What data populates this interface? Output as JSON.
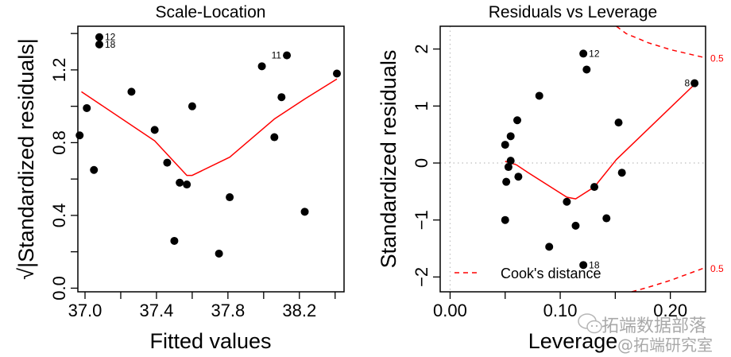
{
  "chart_data": [
    {
      "type": "scatter",
      "title": "Scale-Location",
      "xlabel": "Fitted values",
      "ylabel": "√|Standardized residuals|",
      "xlim": [
        36.96,
        38.45
      ],
      "ylim": [
        -0.02,
        1.44
      ],
      "xticks": [
        37.0,
        37.2,
        37.4,
        37.6,
        37.8,
        38.0,
        38.2,
        38.4
      ],
      "xticklabels": [
        "37.0",
        "",
        "37.4",
        "",
        "37.8",
        "",
        "38.2",
        ""
      ],
      "yticks": [
        0.0,
        0.2,
        0.4,
        0.6,
        0.8,
        1.0,
        1.2,
        1.4
      ],
      "yticklabels": [
        "0.0",
        "",
        "0.4",
        "",
        "0.8",
        "",
        "1.2",
        ""
      ],
      "grid": false,
      "points": [
        {
          "x": 37.08,
          "y": 1.38,
          "label": "12"
        },
        {
          "x": 37.08,
          "y": 1.34,
          "label": "18"
        },
        {
          "x": 36.97,
          "y": 0.84,
          "label": ""
        },
        {
          "x": 37.01,
          "y": 0.99,
          "label": ""
        },
        {
          "x": 37.05,
          "y": 0.65,
          "label": ""
        },
        {
          "x": 37.26,
          "y": 1.08,
          "label": ""
        },
        {
          "x": 37.39,
          "y": 0.87,
          "label": ""
        },
        {
          "x": 37.46,
          "y": 0.69,
          "label": ""
        },
        {
          "x": 37.5,
          "y": 0.26,
          "label": ""
        },
        {
          "x": 37.53,
          "y": 0.58,
          "label": ""
        },
        {
          "x": 37.57,
          "y": 0.57,
          "label": ""
        },
        {
          "x": 37.6,
          "y": 1.0,
          "label": ""
        },
        {
          "x": 37.75,
          "y": 0.19,
          "label": ""
        },
        {
          "x": 37.81,
          "y": 0.5,
          "label": ""
        },
        {
          "x": 37.99,
          "y": 1.22,
          "label": ""
        },
        {
          "x": 38.06,
          "y": 0.83,
          "label": ""
        },
        {
          "x": 38.1,
          "y": 1.05,
          "label": ""
        },
        {
          "x": 38.13,
          "y": 1.28,
          "label": "11"
        },
        {
          "x": 38.23,
          "y": 0.42,
          "label": ""
        },
        {
          "x": 38.41,
          "y": 1.18,
          "label": ""
        }
      ],
      "smooth_line": {
        "color": "#ff0000",
        "x": [
          36.98,
          37.39,
          37.57,
          37.6,
          37.81,
          38.06,
          38.23,
          38.41
        ],
        "y": [
          1.08,
          0.81,
          0.62,
          0.62,
          0.72,
          0.93,
          1.04,
          1.15
        ]
      }
    },
    {
      "type": "scatter",
      "title": "Residuals vs Leverage",
      "xlabel": "Leverage",
      "ylabel": "Standardized residuals",
      "xlim": [
        -0.009,
        0.232
      ],
      "ylim": [
        -2.26,
        2.4
      ],
      "xticks": [
        0.0,
        0.05,
        0.1,
        0.15,
        0.2
      ],
      "xticklabels": [
        "0.00",
        "",
        "0.10",
        "",
        "0.20"
      ],
      "yticks": [
        -2,
        -1,
        0,
        1,
        2
      ],
      "yticklabels": [
        "−2",
        "−1",
        "0",
        "1",
        "2"
      ],
      "grid": false,
      "reference_lines": {
        "h": 0,
        "v": 0,
        "style": "dotted",
        "color": "#bebebe"
      },
      "points": [
        {
          "x": 0.121,
          "y": 1.92,
          "label": "12"
        },
        {
          "x": 0.124,
          "y": 1.64,
          "label": ""
        },
        {
          "x": 0.081,
          "y": 1.18,
          "label": ""
        },
        {
          "x": 0.061,
          "y": 0.75,
          "label": ""
        },
        {
          "x": 0.055,
          "y": 0.47,
          "label": ""
        },
        {
          "x": 0.05,
          "y": 0.32,
          "label": ""
        },
        {
          "x": 0.055,
          "y": 0.04,
          "label": ""
        },
        {
          "x": 0.053,
          "y": -0.07,
          "label": ""
        },
        {
          "x": 0.062,
          "y": -0.24,
          "label": ""
        },
        {
          "x": 0.051,
          "y": -0.33,
          "label": ""
        },
        {
          "x": 0.131,
          "y": -0.42,
          "label": ""
        },
        {
          "x": 0.106,
          "y": -0.68,
          "label": ""
        },
        {
          "x": 0.05,
          "y": -1.0,
          "label": ""
        },
        {
          "x": 0.114,
          "y": -1.1,
          "label": ""
        },
        {
          "x": 0.142,
          "y": -0.97,
          "label": ""
        },
        {
          "x": 0.09,
          "y": -1.47,
          "label": ""
        },
        {
          "x": 0.121,
          "y": -1.79,
          "label": "18"
        },
        {
          "x": 0.222,
          "y": 1.4,
          "label": "8"
        },
        {
          "x": 0.153,
          "y": 0.71,
          "label": ""
        },
        {
          "x": 0.156,
          "y": -0.17,
          "label": ""
        }
      ],
      "smooth_line": {
        "color": "#ff0000",
        "x": [
          0.05,
          0.06,
          0.071,
          0.106,
          0.114,
          0.131,
          0.151,
          0.222
        ],
        "y": [
          0.03,
          -0.03,
          -0.17,
          -0.6,
          -0.63,
          -0.42,
          0.06,
          1.38
        ]
      },
      "cooks_distance": {
        "color": "#ff0000",
        "style": "dashed",
        "level_label": "0.5",
        "upper": {
          "x": [
            0.151,
            0.16,
            0.18,
            0.2,
            0.231
          ],
          "y": [
            2.4,
            2.27,
            2.11,
            1.99,
            1.85
          ]
        },
        "lower": {
          "x": [
            0.165,
            0.18,
            0.2,
            0.231
          ],
          "y": [
            -2.26,
            -2.18,
            -2.06,
            -1.84
          ]
        }
      },
      "legend": {
        "label": "Cook's distance",
        "placement": "bottom-left"
      }
    }
  ],
  "watermark": {
    "line1": "拓端数据部落",
    "line2": "@拓端研究室",
    "icon": "wechat-icon"
  }
}
